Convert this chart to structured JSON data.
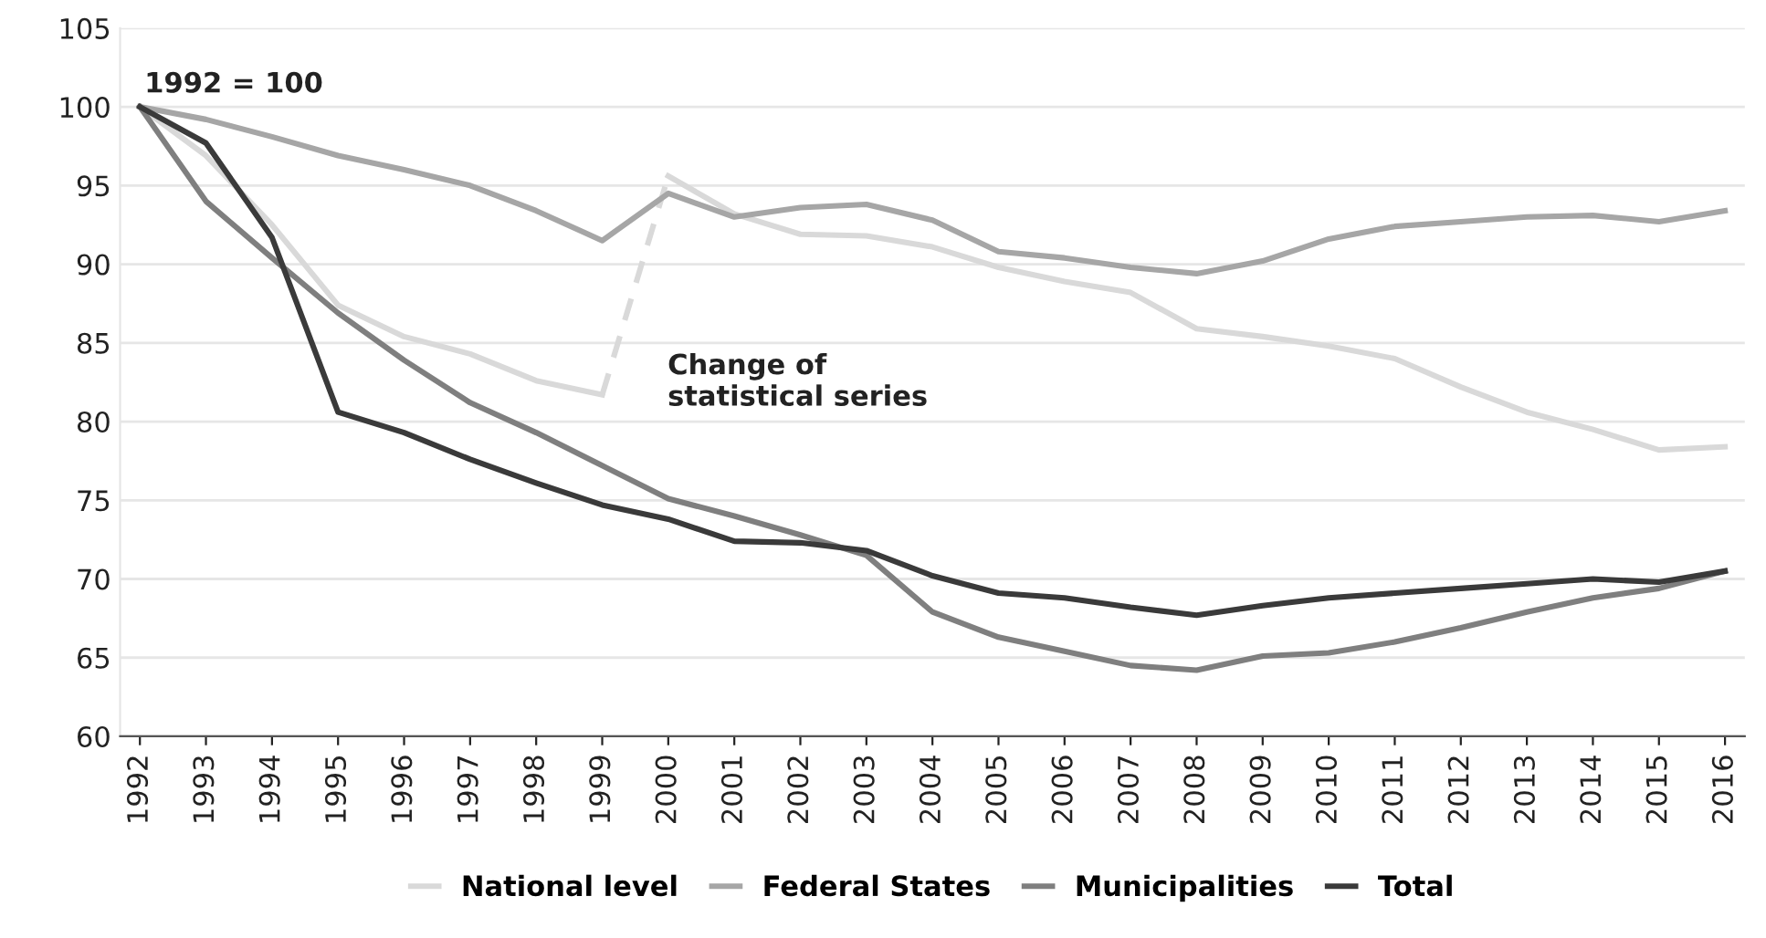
{
  "chart_data": {
    "type": "line",
    "x": [
      1992,
      1993,
      1994,
      1995,
      1996,
      1997,
      1998,
      1999,
      2000,
      2001,
      2002,
      2003,
      2004,
      2005,
      2006,
      2007,
      2008,
      2009,
      2010,
      2011,
      2012,
      2013,
      2014,
      2015,
      2016
    ],
    "xlim": [
      1991.7,
      2016.3
    ],
    "xticks": [
      1992,
      1993,
      1994,
      1995,
      1996,
      1997,
      1998,
      1999,
      2000,
      2001,
      2002,
      2003,
      2004,
      2005,
      2006,
      2007,
      2008,
      2009,
      2010,
      2011,
      2012,
      2013,
      2014,
      2015,
      2016
    ],
    "ylim": [
      60,
      105
    ],
    "yticks": [
      60,
      65,
      70,
      75,
      80,
      85,
      90,
      95,
      100,
      105
    ],
    "grid": "y",
    "legend": "bottom",
    "line_style": "solid",
    "series": [
      {
        "name": "National level",
        "color": "#d9d9d9",
        "x": [
          1992,
          1993,
          1994,
          1995,
          1996,
          1997,
          1998,
          1999
        ],
        "values": [
          100,
          96.9,
          92.5,
          87.4,
          85.4,
          84.3,
          82.6,
          81.7
        ]
      },
      {
        "color": "#d9d9d9",
        "x": [
          2000,
          2001,
          2002,
          2003,
          2004,
          2005,
          2006,
          2007,
          2008,
          2009,
          2010,
          2011,
          2012,
          2013,
          2014,
          2015,
          2016
        ],
        "values": [
          95.6,
          93.2,
          91.9,
          91.8,
          91.1,
          89.8,
          88.9,
          88.2,
          85.9,
          85.4,
          84.8,
          84.0,
          82.2,
          80.6,
          79.5,
          78.2,
          78.4
        ]
      },
      {
        "color": "#d9d9d9",
        "x": [
          1999,
          2000
        ],
        "values": [
          81.7,
          95.6
        ],
        "line_style": "dashed"
      },
      {
        "name": "Federal States",
        "color": "#a6a6a6",
        "values": [
          100,
          99.2,
          98.1,
          96.9,
          96.0,
          95.0,
          93.4,
          91.5,
          94.5,
          93.0,
          93.6,
          93.8,
          92.8,
          90.8,
          90.4,
          89.8,
          89.4,
          90.2,
          91.6,
          92.4,
          92.7,
          93.0,
          93.1,
          92.7,
          93.4
        ]
      },
      {
        "name": "Municipalities",
        "color": "#7f7f7f",
        "values": [
          100,
          94.0,
          90.4,
          86.9,
          83.9,
          81.2,
          79.3,
          77.2,
          75.1,
          74.0,
          72.8,
          71.5,
          67.9,
          66.3,
          65.4,
          64.5,
          64.2,
          65.1,
          65.3,
          66.0,
          66.9,
          67.9,
          68.8,
          69.4,
          70.5
        ]
      },
      {
        "name": "Total",
        "color": "#3a3a3a",
        "values": [
          100,
          97.7,
          91.7,
          80.6,
          79.3,
          77.6,
          76.1,
          74.7,
          73.8,
          72.4,
          72.3,
          71.8,
          70.2,
          69.1,
          68.8,
          68.2,
          67.7,
          68.3,
          68.8,
          69.1,
          69.4,
          69.7,
          70.0,
          69.8,
          70.5
        ]
      }
    ],
    "annotations": [
      "1992 = 100",
      "Change of\nstatistical series"
    ]
  }
}
